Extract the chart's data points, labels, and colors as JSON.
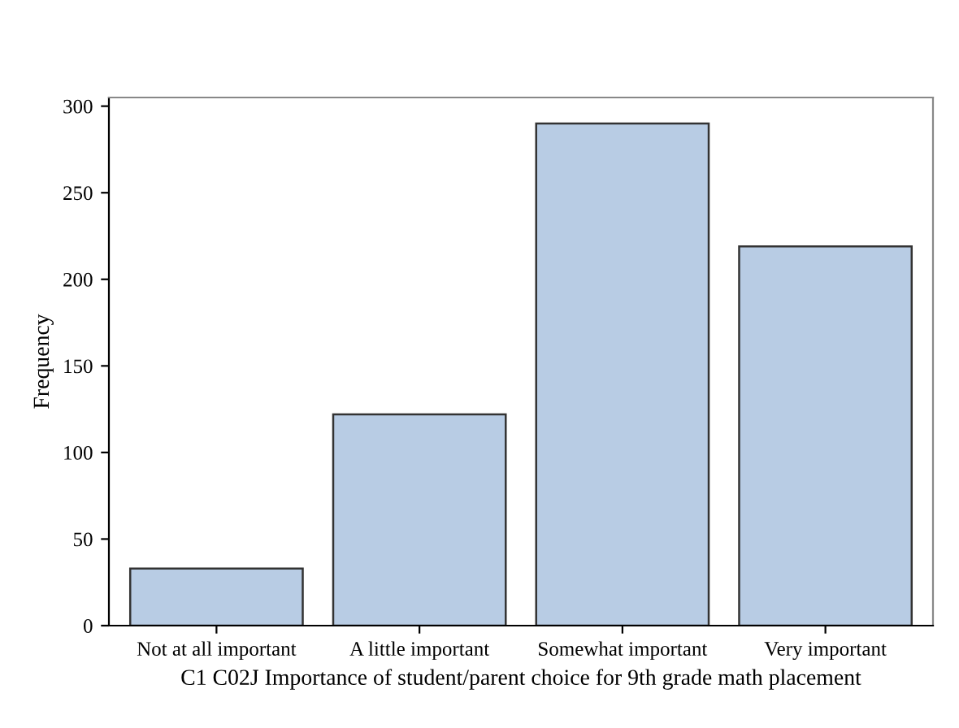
{
  "chart_data": {
    "type": "bar",
    "xlabel": "C1 C02J Importance of student/parent choice for 9th grade math placement",
    "ylabel": "Frequency",
    "categories": [
      "Not at all important",
      "A little important",
      "Somewhat important",
      "Very important"
    ],
    "values": [
      33,
      122,
      290,
      219
    ],
    "color": "#b8cce4",
    "ylim": [
      0,
      305
    ],
    "yticks": [
      0,
      50,
      100,
      150,
      200,
      250,
      300
    ],
    "grid": false
  }
}
